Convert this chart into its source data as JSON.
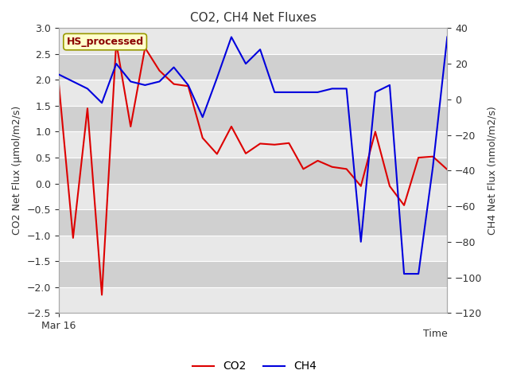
{
  "title": "CO2, CH4 Net Fluxes",
  "xlabel": "Time",
  "ylabel_left": "CO2 Net Flux (μmol/m2/s)",
  "ylabel_right": "CH4 Net Flux (nmol/m2/s)",
  "legend_label": "HS_processed",
  "co2_label": "CO2",
  "ch4_label": "CH4",
  "co2_color": "#dd0000",
  "ch4_color": "#0000dd",
  "background_color": "#ffffff",
  "plot_bg_light": "#e8e8e8",
  "plot_bg_dark": "#d0d0d0",
  "grid_color": "#ffffff",
  "ylim_left": [
    -2.5,
    3.0
  ],
  "ylim_right": [
    -120,
    40
  ],
  "yticks_left": [
    -2.5,
    -2.0,
    -1.5,
    -1.0,
    -0.5,
    0.0,
    0.5,
    1.0,
    1.5,
    2.0,
    2.5,
    3.0
  ],
  "yticks_right": [
    -120,
    -100,
    -80,
    -60,
    -40,
    -20,
    0,
    20,
    40
  ],
  "co2_values": [
    1.95,
    -1.05,
    1.45,
    -2.15,
    2.72,
    1.1,
    2.62,
    2.18,
    1.92,
    1.88,
    0.88,
    0.57,
    1.1,
    0.58,
    0.77,
    0.75,
    0.78,
    0.28,
    0.44,
    0.32,
    0.28,
    -0.05,
    1.0,
    -0.05,
    -0.42,
    0.5,
    0.52,
    0.27
  ],
  "ch4_values": [
    14.0,
    10.0,
    6.0,
    -2.0,
    20.0,
    10.0,
    8.0,
    10.0,
    18.0,
    8.0,
    -10.0,
    12.0,
    35.0,
    20.0,
    28.0,
    4.0,
    4.0,
    4.0,
    4.0,
    6.0,
    6.0,
    -80.0,
    4.0,
    8.0,
    -98.0,
    -98.0,
    -38.0,
    35.0
  ],
  "x_start_label": "Mar 16",
  "title_fontsize": 11,
  "label_fontsize": 9,
  "tick_fontsize": 9,
  "legend_fontsize": 10,
  "hs_fontsize": 9
}
